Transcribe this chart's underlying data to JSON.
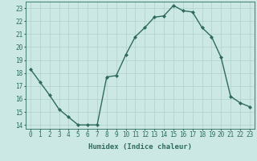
{
  "x": [
    0,
    1,
    2,
    3,
    4,
    5,
    6,
    7,
    8,
    9,
    10,
    11,
    12,
    13,
    14,
    15,
    16,
    17,
    18,
    19,
    20,
    21,
    22,
    23
  ],
  "y": [
    18.3,
    17.3,
    16.3,
    15.2,
    14.6,
    14.0,
    14.0,
    14.0,
    17.7,
    17.8,
    19.4,
    20.8,
    21.5,
    22.3,
    22.4,
    23.2,
    22.8,
    22.7,
    21.5,
    20.8,
    19.2,
    16.2,
    15.7,
    15.4
  ],
  "line_color": "#2e6b5e",
  "marker": "D",
  "marker_size": 2.0,
  "bg_color": "#cce8e4",
  "grid_color": "#b0d0cc",
  "axis_color": "#2e6b5e",
  "xlabel": "Humidex (Indice chaleur)",
  "xlim": [
    -0.5,
    23.5
  ],
  "ylim": [
    13.7,
    23.5
  ],
  "yticks": [
    14,
    15,
    16,
    17,
    18,
    19,
    20,
    21,
    22,
    23
  ],
  "xticks": [
    0,
    1,
    2,
    3,
    4,
    5,
    6,
    7,
    8,
    9,
    10,
    11,
    12,
    13,
    14,
    15,
    16,
    17,
    18,
    19,
    20,
    21,
    22,
    23
  ],
  "xlabel_fontsize": 6.5,
  "tick_fontsize": 5.5,
  "line_width": 1.0
}
